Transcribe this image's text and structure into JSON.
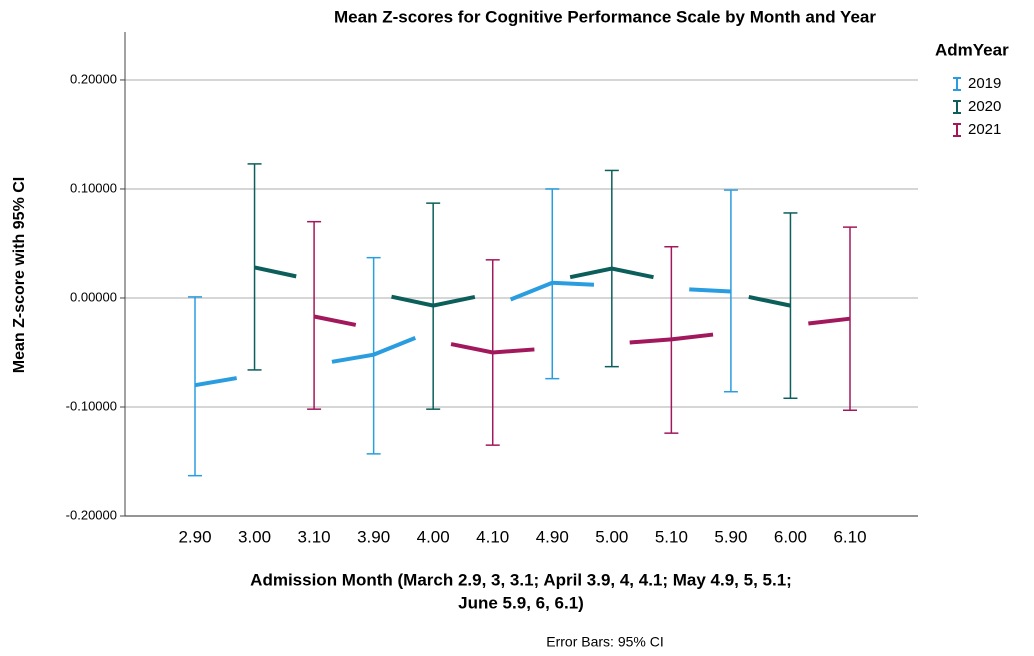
{
  "chart_data": {
    "type": "errorbar-line",
    "title": "Mean Z-scores for Cognitive Performance Scale by Month and Year",
    "y_label": "Mean Z-score with 95% CI",
    "x_label": [
      "Admission Month (March 2.9, 3, 3.1; April 3.9, 4, 4.1; May 4.9, 5, 5.1;",
      "June 5.9, 6, 6.1)"
    ],
    "note": "Error Bars: 95% CI",
    "legend_title": "AdmYear",
    "categories": [
      "2.90",
      "3.00",
      "3.10",
      "3.90",
      "4.00",
      "4.10",
      "4.90",
      "5.00",
      "5.10",
      "5.90",
      "6.00",
      "6.10"
    ],
    "ylim": [
      -0.2,
      0.244
    ],
    "yticks": [
      {
        "value": -0.2,
        "label": "-0.20000"
      },
      {
        "value": -0.1,
        "label": "-0.10000"
      },
      {
        "value": 0,
        "label": "0.00000"
      },
      {
        "value": 0.1,
        "label": "0.10000"
      },
      {
        "value": 0.2,
        "label": "0.20000"
      }
    ],
    "grid": true,
    "series": [
      {
        "name": "2019",
        "color": "#2a9de0",
        "values": [
          -0.08,
          null,
          null,
          -0.052,
          null,
          null,
          0.014,
          null,
          null,
          0.006,
          null,
          null
        ],
        "lower": [
          -0.163,
          null,
          null,
          -0.143,
          null,
          null,
          -0.074,
          null,
          null,
          -0.086,
          null,
          null
        ],
        "upper": [
          0.001,
          null,
          null,
          0.037,
          null,
          null,
          0.1,
          null,
          null,
          0.099,
          null,
          null
        ]
      },
      {
        "name": "2020",
        "color": "#0b5e5a",
        "values": [
          null,
          0.028,
          null,
          null,
          -0.007,
          null,
          null,
          0.027,
          null,
          null,
          -0.007,
          null
        ],
        "lower": [
          null,
          -0.066,
          null,
          null,
          -0.102,
          null,
          null,
          -0.063,
          null,
          null,
          -0.092,
          null
        ],
        "upper": [
          null,
          0.123,
          null,
          null,
          0.087,
          null,
          null,
          0.117,
          null,
          null,
          0.078,
          null
        ]
      },
      {
        "name": "2021",
        "color": "#a2185d",
        "values": [
          null,
          null,
          -0.017,
          null,
          null,
          -0.05,
          null,
          null,
          -0.038,
          null,
          null,
          -0.019
        ],
        "lower": [
          null,
          null,
          -0.102,
          null,
          null,
          -0.135,
          null,
          null,
          -0.124,
          null,
          null,
          -0.103
        ],
        "upper": [
          null,
          null,
          0.07,
          null,
          null,
          0.035,
          null,
          null,
          0.047,
          null,
          null,
          0.065
        ]
      }
    ]
  }
}
